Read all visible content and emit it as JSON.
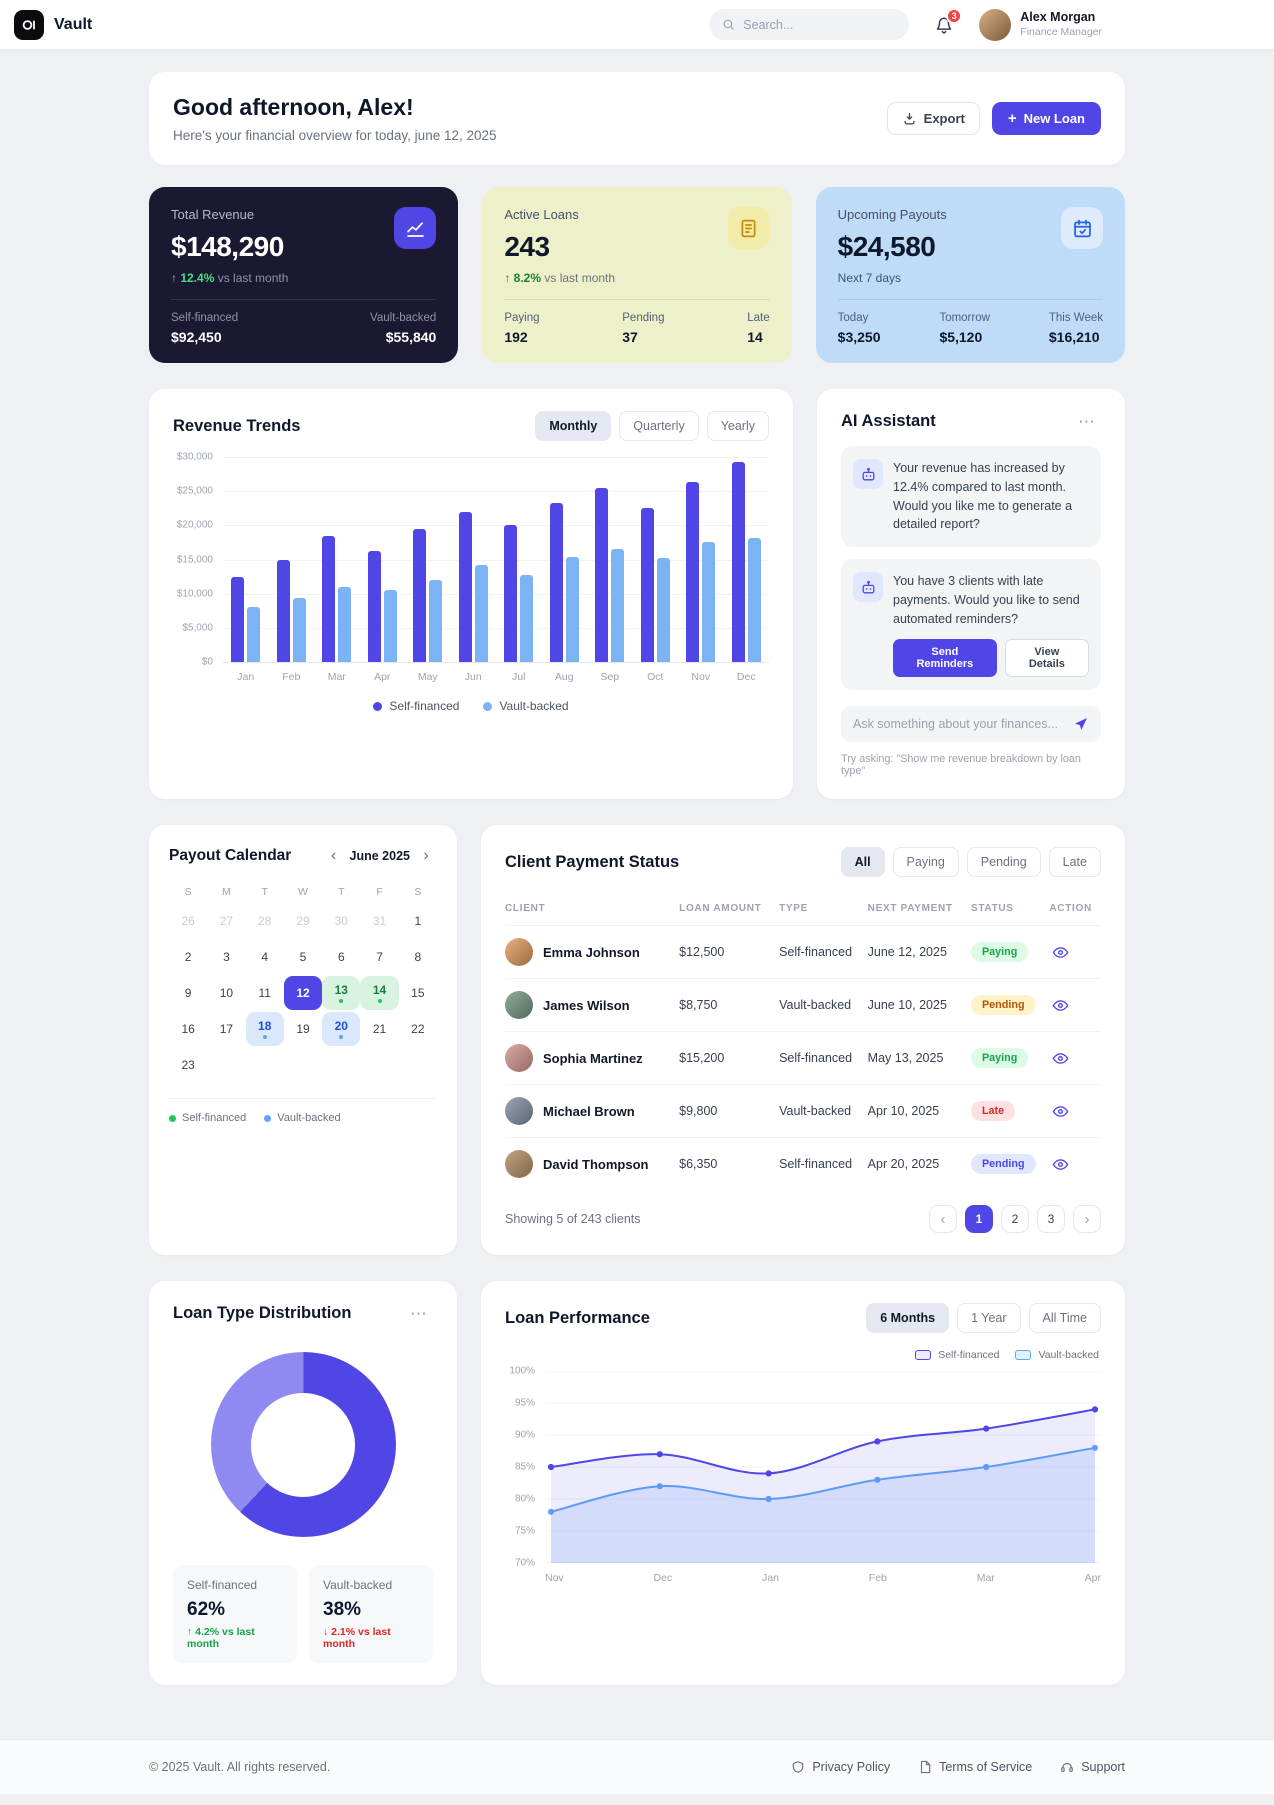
{
  "icons": {
    "more": "⋯",
    "chevron_left": "‹",
    "chevron_right": "›",
    "plus": "+"
  },
  "app": {
    "name": "Vault",
    "copyright": "© 2025 Vault. All rights reserved.",
    "footer_links": [
      {
        "label": "Privacy Policy"
      },
      {
        "label": "Terms of Service"
      },
      {
        "label": "Support"
      }
    ]
  },
  "header": {
    "search_placeholder": "Search...",
    "notification_count": "3",
    "user_name": "Alex Morgan",
    "user_role": "Finance Manager"
  },
  "greeting": {
    "title": "Good afternoon, Alex!",
    "subtitle": "Here's your financial overview for today, june 12, 2025",
    "export_label": "Export",
    "new_loan_label": "New Loan"
  },
  "stats": [
    {
      "label": "Total Revenue",
      "value": "$148,290",
      "trend": "↑ 12.4%",
      "trend_note": "vs last month",
      "items": [
        {
          "label": "Self-financed",
          "value": "$92,450"
        },
        {
          "label": "Vault-backed",
          "value": "$55,840"
        }
      ]
    },
    {
      "label": "Active Loans",
      "value": "243",
      "trend": "↑ 8.2%",
      "trend_note": "vs last month",
      "items": [
        {
          "label": "Paying",
          "value": "192"
        },
        {
          "label": "Pending",
          "value": "37"
        },
        {
          "label": "Late",
          "value": "14"
        }
      ]
    },
    {
      "label": "Upcoming Payouts",
      "value": "$24,580",
      "subtitle": "Next 7 days",
      "items": [
        {
          "label": "Today",
          "value": "$3,250"
        },
        {
          "label": "Tomorrow",
          "value": "$5,120"
        },
        {
          "label": "This Week",
          "value": "$16,210"
        }
      ]
    }
  ],
  "revenue_trends": {
    "title": "Revenue Trends",
    "tabs": [
      "Monthly",
      "Quarterly",
      "Yearly"
    ],
    "active_tab": "Monthly",
    "chart": {
      "type": "bar",
      "categories": [
        "Jan",
        "Feb",
        "Mar",
        "Apr",
        "May",
        "Jun",
        "Jul",
        "Aug",
        "Sep",
        "Oct",
        "Nov",
        "Dec"
      ],
      "series": [
        {
          "name": "Self-financed",
          "color": "#4f46e5",
          "values": [
            12500,
            15000,
            18500,
            16200,
            19500,
            22000,
            20000,
            23200,
            25400,
            22500,
            26300,
            29200
          ]
        },
        {
          "name": "Vault-backed",
          "color": "#7cb3f5",
          "values": [
            8000,
            9400,
            11000,
            10500,
            12000,
            14200,
            12800,
            15400,
            16600,
            15200,
            17500,
            18200
          ]
        }
      ],
      "ylim": [
        0,
        30000
      ],
      "yticks": [
        "$30,000",
        "$25,000",
        "$20,000",
        "$15,000",
        "$10,000",
        "$5,000",
        "$0"
      ]
    }
  },
  "ai": {
    "title": "AI Assistant",
    "messages": [
      {
        "text": "Your revenue has increased by 12.4% compared to last month. Would you like me to generate a detailed report?"
      },
      {
        "text": "You have 3 clients with late payments. Would you like to send automated reminders?",
        "primary_action": "Send Reminders",
        "secondary_action": "View Details"
      }
    ],
    "input_placeholder": "Ask something about your finances...",
    "hint": "Try asking: \"Show me revenue breakdown by loan type\""
  },
  "calendar": {
    "title": "Payout Calendar",
    "month": "June 2025",
    "day_headers": [
      "S",
      "M",
      "T",
      "W",
      "T",
      "F",
      "S"
    ],
    "days": [
      {
        "d": "26",
        "muted": true
      },
      {
        "d": "27",
        "muted": true
      },
      {
        "d": "28",
        "muted": true
      },
      {
        "d": "29",
        "muted": true
      },
      {
        "d": "30",
        "muted": true
      },
      {
        "d": "31",
        "muted": true
      },
      {
        "d": "1"
      },
      {
        "d": "2"
      },
      {
        "d": "3"
      },
      {
        "d": "4"
      },
      {
        "d": "5"
      },
      {
        "d": "6"
      },
      {
        "d": "7"
      },
      {
        "d": "8"
      },
      {
        "d": "9"
      },
      {
        "d": "10"
      },
      {
        "d": "11"
      },
      {
        "d": "12",
        "state": "selected"
      },
      {
        "d": "13",
        "state": "green",
        "dot": "green"
      },
      {
        "d": "14",
        "state": "green",
        "dot": "green"
      },
      {
        "d": "15"
      },
      {
        "d": "16"
      },
      {
        "d": "17"
      },
      {
        "d": "18",
        "state": "blue",
        "dot": "blue"
      },
      {
        "d": "19"
      },
      {
        "d": "20",
        "state": "blue",
        "dot": "blue"
      },
      {
        "d": "21"
      },
      {
        "d": "22"
      },
      {
        "d": "23"
      }
    ],
    "legend": [
      {
        "label": "Self-financed",
        "color": "#22c55e"
      },
      {
        "label": "Vault-backed",
        "color": "#60a5fa"
      }
    ]
  },
  "clients": {
    "title": "Client Payment Status",
    "filters": [
      "All",
      "Paying",
      "Pending",
      "Late"
    ],
    "active_filter": "All",
    "columns": [
      "CLIENT",
      "LOAN AMOUNT",
      "TYPE",
      "NEXT PAYMENT",
      "STATUS",
      "ACTION"
    ],
    "rows": [
      {
        "name": "Emma Johnson",
        "amount": "$12,500",
        "type": "Self-financed",
        "next_payment": "June 12, 2025",
        "status": "Paying",
        "status_variant": "green"
      },
      {
        "name": "James Wilson",
        "amount": "$8,750",
        "type": "Vault-backed",
        "next_payment": "June 10, 2025",
        "status": "Pending",
        "status_variant": "amber"
      },
      {
        "name": "Sophia Martinez",
        "amount": "$15,200",
        "type": "Self-financed",
        "next_payment": "May 13, 2025",
        "status": "Paying",
        "status_variant": "green"
      },
      {
        "name": "Michael Brown",
        "amount": "$9,800",
        "type": "Vault-backed",
        "next_payment": "Apr 10, 2025",
        "status": "Late",
        "status_variant": "red"
      },
      {
        "name": "David Thompson",
        "amount": "$6,350",
        "type": "Self-financed",
        "next_payment": "Apr 20, 2025",
        "status": "Pending",
        "status_variant": "indigo"
      }
    ],
    "footer": "Showing 5 of 243 clients",
    "pages": [
      "1",
      "2",
      "3"
    ],
    "active_page": "1"
  },
  "loan_distribution": {
    "title": "Loan Type Distribution",
    "chart": {
      "type": "pie",
      "slices": [
        {
          "label": "Self-financed",
          "value": 62,
          "color": "#4f46e5"
        },
        {
          "label": "Vault-backed",
          "value": 38,
          "color": "#8f8af2"
        }
      ]
    },
    "items": [
      {
        "label": "Self-financed",
        "value": "62%",
        "trend": "↑ 4.2% vs last month",
        "direction": "up"
      },
      {
        "label": "Vault-backed",
        "value": "38%",
        "trend": "↓ 2.1% vs last month",
        "direction": "down"
      }
    ]
  },
  "loan_performance": {
    "title": "Loan Performance",
    "tabs": [
      "6 Months",
      "1 Year",
      "All Time"
    ],
    "active_tab": "6 Months",
    "chart": {
      "type": "line",
      "x": [
        "Nov",
        "Dec",
        "Jan",
        "Feb",
        "Mar",
        "Apr"
      ],
      "series": [
        {
          "name": "Self-financed",
          "color": "#4f46e5",
          "fill": "rgba(79,70,229,0.10)",
          "values": [
            85,
            87,
            84,
            89,
            91,
            94
          ]
        },
        {
          "name": "Vault-backed",
          "color": "#60a5fa",
          "fill": "rgba(96,165,250,0.18)",
          "values": [
            78,
            82,
            80,
            83,
            85,
            88
          ]
        }
      ],
      "ylim": [
        70,
        100
      ],
      "yticks": [
        "100%",
        "95%",
        "90%",
        "85%",
        "80%",
        "75%",
        "70%"
      ]
    }
  }
}
